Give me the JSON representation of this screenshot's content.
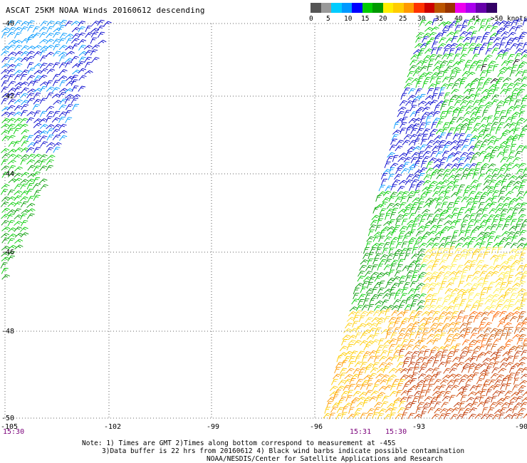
{
  "title": "ASCAT 25KM NOAA Winds 20160612 descending",
  "colorbar": {
    "labels": [
      "0",
      "5",
      "10",
      "15",
      "20",
      "25",
      "30",
      "35",
      "40",
      "45",
      ">50 knots"
    ],
    "colors": [
      "#555555",
      "#999999",
      "#00ccff",
      "#0099ff",
      "#0000ff",
      "#00cc00",
      "#009900",
      "#ffee00",
      "#ffcc00",
      "#ff9900",
      "#ff3300",
      "#cc0000",
      "#bb5500",
      "#993300",
      "#ee00ee",
      "#aa00ee",
      "#6600aa",
      "#330066"
    ]
  },
  "axes": {
    "lat_labels": [
      "-40",
      "-42",
      "-44",
      "-46",
      "-48",
      "-50"
    ],
    "lon_labels": [
      "-105",
      "-102",
      "-99",
      "-96",
      "-93",
      "-90"
    ]
  },
  "time_labels": [
    "15:30",
    "15:31",
    "15:30"
  ],
  "notes": {
    "line1": "Note: 1) Times are GMT 2)Times along bottom correspond to measurement at -45S",
    "line2": "3)Data buffer is 22 hrs from 20160612 4) Black wind barbs indicate possible contamination",
    "line3": "NOAA/NESDIS/Center for Satellite Applications and Research"
  }
}
